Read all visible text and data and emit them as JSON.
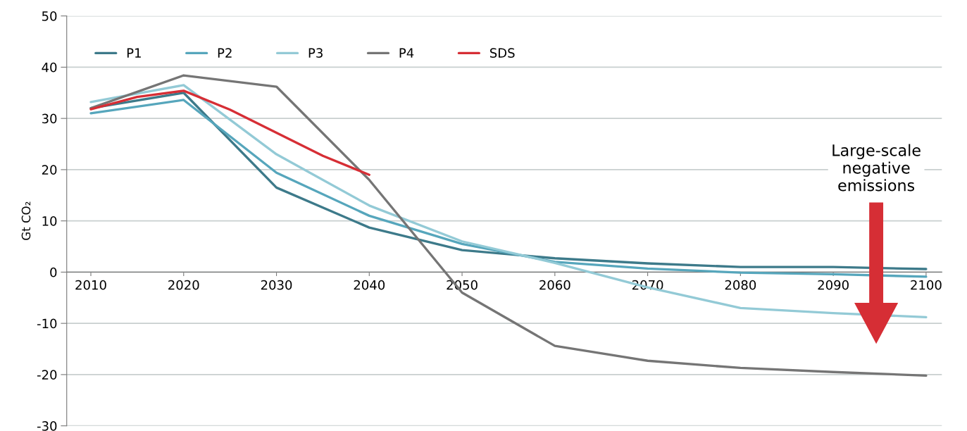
{
  "chart_data": {
    "type": "line",
    "ylabel": "Gt CO₂",
    "xlim": [
      2007.4,
      2101.7
    ],
    "xticks": [
      2010,
      2020,
      2030,
      2040,
      2050,
      2060,
      2070,
      2080,
      2090,
      2100
    ],
    "ylim": [
      -30,
      50
    ],
    "yticks": [
      -30,
      -20,
      -10,
      0,
      10,
      20,
      30,
      40,
      50
    ],
    "grid": "y",
    "legend": "top left",
    "marker": "none",
    "line_style": "solid",
    "x": [
      2010,
      2020,
      2030,
      2040,
      2050,
      2060,
      2070,
      2080,
      2090,
      2100
    ],
    "series": [
      {
        "name": "P1",
        "color": "#3d7a8a",
        "values": [
          32,
          35,
          16.5,
          8.7,
          4.3,
          2.7,
          1.7,
          1.0,
          1.0,
          0.6
        ]
      },
      {
        "name": "P2",
        "color": "#56a6bc",
        "values": [
          31,
          33.6,
          19.4,
          11,
          5.5,
          2,
          0.7,
          -0.1,
          -0.4,
          -0.9
        ]
      },
      {
        "name": "P3",
        "color": "#93cad6",
        "values": [
          33.2,
          36.5,
          23,
          13,
          6,
          1.8,
          -3,
          -7,
          -8,
          -8.8
        ]
      },
      {
        "name": "P4",
        "color": "#757575",
        "values": [
          32,
          38.4,
          36.2,
          18,
          -4,
          -14.4,
          -17.3,
          -18.7,
          -19.5,
          -20.2
        ]
      },
      {
        "name": "SDS",
        "color": "#d62e35",
        "x": [
          2010,
          2015,
          2020,
          2025,
          2030,
          2035,
          2040
        ],
        "values": [
          31.8,
          34.2,
          35.4,
          31.7,
          27.2,
          22.7,
          19
        ]
      }
    ],
    "annotations": [
      "Large-scale\nnegative\nemissions"
    ]
  }
}
